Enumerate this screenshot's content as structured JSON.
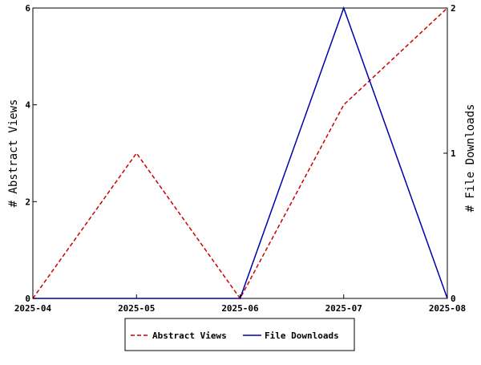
{
  "chart_data": {
    "type": "line",
    "x": [
      "2025-04",
      "2025-05",
      "2025-06",
      "2025-07",
      "2025-08"
    ],
    "series": [
      {
        "name": "Abstract Views",
        "axis": "left",
        "values": [
          0,
          3,
          0,
          4,
          6
        ],
        "color": "#cc0000",
        "dash": "dashed"
      },
      {
        "name": "File Downloads",
        "axis": "right",
        "values": [
          0,
          0,
          0,
          2,
          0
        ],
        "color": "#0000aa",
        "dash": "solid"
      }
    ],
    "ylabel_left": "# Abstract Views",
    "ylabel_right": "# File Downloads",
    "ylim_left": [
      0,
      6
    ],
    "yticks_left": [
      "0",
      "2",
      "4",
      "6"
    ],
    "ylim_right": [
      0,
      2
    ],
    "yticks_right": [
      "0",
      "1",
      "2"
    ],
    "grid": false,
    "legend_position": "bottom"
  }
}
